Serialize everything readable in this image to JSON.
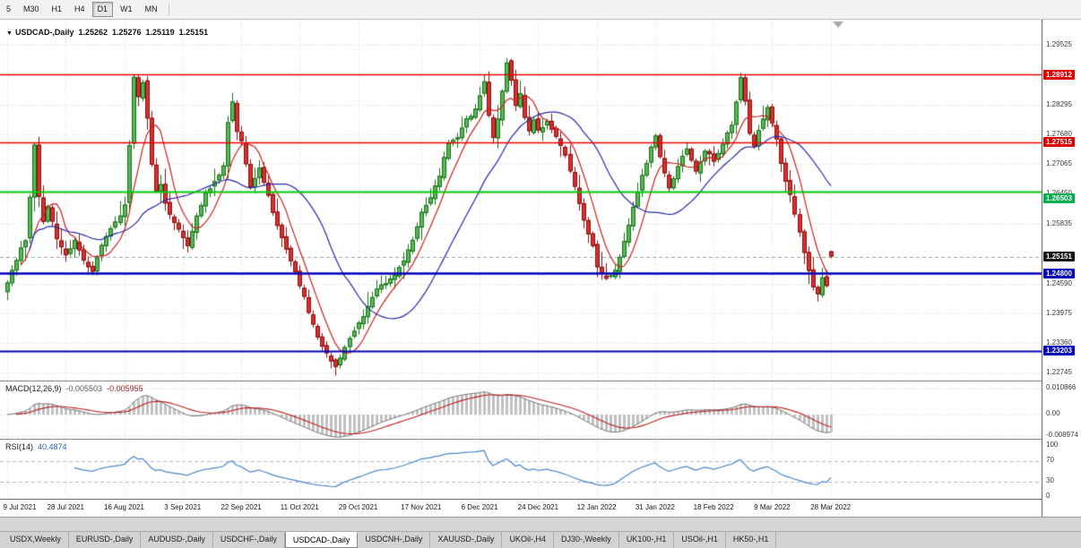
{
  "toolbar": {
    "buttons": [
      {
        "label": "5",
        "active": false
      },
      {
        "label": "M30",
        "active": false
      },
      {
        "label": "H1",
        "active": false
      },
      {
        "label": "H4",
        "active": false
      },
      {
        "label": "D1",
        "active": true
      },
      {
        "label": "W1",
        "active": false
      },
      {
        "label": "MN",
        "active": false
      }
    ]
  },
  "chart_header": {
    "marker": "▼",
    "symbol": "USDCAD-,Daily",
    "open": "1.25262",
    "high": "1.25276",
    "low": "1.25119",
    "close": "1.25151"
  },
  "price_axis": {
    "labels": [
      "1.29525",
      "1.28295",
      "1.27680",
      "1.27065",
      "1.26450",
      "1.25835",
      "1.24590",
      "1.23975",
      "1.23360",
      "1.22745"
    ],
    "tags": [
      {
        "text": "1.28912",
        "color": "#dd0000",
        "dy": 0
      },
      {
        "text": "1.27515",
        "color": "#dd0000",
        "dy": 0
      },
      {
        "text": "1.26503",
        "color": "#00b050",
        "dy": 8
      },
      {
        "text": "1.25151",
        "color": "#141414",
        "dy": 0
      },
      {
        "text": "1.24800",
        "color": "#0000bb",
        "dy": 0
      },
      {
        "text": "1.23203",
        "color": "#0000bb",
        "dy": 0
      }
    ]
  },
  "macd_panel": {
    "title": "MACD(12,26,9)",
    "value1": "-0.005503",
    "value2": "-0.005955",
    "axis": [
      {
        "text": "0.010866",
        "value": 0.010866
      },
      {
        "text": "0.00",
        "value": 0
      },
      {
        "text": "-0.008974",
        "value": -0.008974
      }
    ]
  },
  "rsi_panel": {
    "title": "RSI(14)",
    "value": "40.4874",
    "axis": [
      {
        "text": "100",
        "value": 100
      },
      {
        "text": "70",
        "value": 70
      },
      {
        "text": "30",
        "value": 30
      },
      {
        "text": "0",
        "value": 0
      }
    ]
  },
  "date_axis": [
    "9 Jul 2021",
    "28 Jul 2021",
    "16 Aug 2021",
    "3 Sep 2021",
    "22 Sep 2021",
    "11 Oct 2021",
    "29 Oct 2021",
    "17 Nov 2021",
    "6 Dec 2021",
    "24 Dec 2021",
    "12 Jan 2022",
    "31 Jan 2022",
    "18 Feb 2022",
    "9 Mar 2022",
    "28 Mar 2022"
  ],
  "tabs": [
    {
      "label": "USDX,Weekly",
      "active": false
    },
    {
      "label": "EURUSD-,Daily",
      "active": false
    },
    {
      "label": "AUDUSD-,Daily",
      "active": false
    },
    {
      "label": "USDCHF-,Daily",
      "active": false
    },
    {
      "label": "USDCAD-,Daily",
      "active": true
    },
    {
      "label": "USDCNH-,Daily",
      "active": false
    },
    {
      "label": "XAUUSD-,Daily",
      "active": false
    },
    {
      "label": "UKOil-,H4",
      "active": false
    },
    {
      "label": "DJ30-,Weekly",
      "active": false
    },
    {
      "label": "UK100-,H1",
      "active": false
    },
    {
      "label": "USOil-,H1",
      "active": false
    },
    {
      "label": "HK50-,H1",
      "active": false
    }
  ],
  "chart_data": {
    "type": "candlestick",
    "symbol": "USDCAD",
    "timeframe": "Daily",
    "last_candle": {
      "o": 1.25262,
      "h": 1.25276,
      "l": 1.25119,
      "c": 1.25151
    },
    "current_price": 1.25151,
    "candle_count": 184,
    "ylim": [
      1.2245,
      1.2997
    ],
    "price_grid": [
      1.29525,
      1.28295,
      1.2768,
      1.27065,
      1.2645,
      1.25835,
      1.2459,
      1.23975,
      1.2336,
      1.22745
    ],
    "date_label_indices": [
      0,
      13,
      26,
      39,
      52,
      65,
      78,
      92,
      105,
      118,
      131,
      144,
      157,
      170,
      183
    ],
    "hlines": [
      {
        "price": 1.28912,
        "color": "#ee0000",
        "width": 1.5
      },
      {
        "price": 1.27515,
        "color": "#ee0000",
        "width": 1.5
      },
      {
        "price": 1.26503,
        "color": "#00cc00",
        "width": 2
      },
      {
        "price": 1.248,
        "color": "#0000bb",
        "width": 2.5
      },
      {
        "price": 1.23203,
        "color": "#0000bb",
        "width": 2
      }
    ],
    "overlays": [
      {
        "name": "fast-ma",
        "type": "sma",
        "period": 7,
        "color": "#cc2020"
      },
      {
        "name": "slow-ma",
        "type": "sma",
        "period": 22,
        "color": "#2a2aa8"
      }
    ],
    "indicators": [
      {
        "name": "MACD",
        "params": [
          12,
          26,
          9
        ],
        "last": [
          -0.005503,
          -0.005955
        ],
        "yrange": [
          -0.008974,
          0.010866
        ]
      },
      {
        "name": "RSI",
        "params": [
          14
        ],
        "last": 40.4874,
        "levels": [
          70,
          30
        ],
        "yrange": [
          0,
          100
        ]
      }
    ],
    "close_anchors": [
      [
        0,
        1.2455
      ],
      [
        2,
        1.2505
      ],
      [
        4,
        1.255
      ],
      [
        5,
        1.264
      ],
      [
        6,
        1.275
      ],
      [
        7,
        1.264
      ],
      [
        8,
        1.2585
      ],
      [
        9,
        1.262
      ],
      [
        10,
        1.259
      ],
      [
        11,
        1.2555
      ],
      [
        13,
        1.252
      ],
      [
        15,
        1.255
      ],
      [
        17,
        1.2505
      ],
      [
        19,
        1.2475
      ],
      [
        21,
        1.253
      ],
      [
        23,
        1.257
      ],
      [
        25,
        1.2595
      ],
      [
        26,
        1.262
      ],
      [
        27,
        1.275
      ],
      [
        28,
        1.289
      ],
      [
        29,
        1.2845
      ],
      [
        30,
        1.287
      ],
      [
        31,
        1.2795
      ],
      [
        32,
        1.27
      ],
      [
        33,
        1.265
      ],
      [
        34,
        1.2665
      ],
      [
        35,
        1.2625
      ],
      [
        36,
        1.26
      ],
      [
        38,
        1.257
      ],
      [
        40,
        1.253
      ],
      [
        42,
        1.259
      ],
      [
        44,
        1.2645
      ],
      [
        46,
        1.2665
      ],
      [
        48,
        1.27
      ],
      [
        49,
        1.279
      ],
      [
        50,
        1.283
      ],
      [
        51,
        1.277
      ],
      [
        52,
        1.275
      ],
      [
        54,
        1.265
      ],
      [
        56,
        1.269
      ],
      [
        58,
        1.264
      ],
      [
        60,
        1.258
      ],
      [
        62,
        1.2535
      ],
      [
        65,
        1.245
      ],
      [
        66,
        1.243
      ],
      [
        68,
        1.238
      ],
      [
        70,
        1.233
      ],
      [
        72,
        1.23
      ],
      [
        73,
        1.229
      ],
      [
        75,
        1.2325
      ],
      [
        77,
        1.2355
      ],
      [
        79,
        1.239
      ],
      [
        82,
        1.2445
      ],
      [
        85,
        1.2465
      ],
      [
        88,
        1.2505
      ],
      [
        90,
        1.2545
      ],
      [
        92,
        1.261
      ],
      [
        94,
        1.264
      ],
      [
        96,
        1.268
      ],
      [
        98,
        1.275
      ],
      [
        100,
        1.276
      ],
      [
        102,
        1.28
      ],
      [
        104,
        1.282
      ],
      [
        106,
        1.287
      ],
      [
        107,
        1.28
      ],
      [
        108,
        1.276
      ],
      [
        109,
        1.28
      ],
      [
        110,
        1.286
      ],
      [
        111,
        1.292
      ],
      [
        112,
        1.288
      ],
      [
        113,
        1.283
      ],
      [
        114,
        1.285
      ],
      [
        115,
        1.28
      ],
      [
        116,
        1.277
      ],
      [
        117,
        1.28
      ],
      [
        118,
        1.278
      ],
      [
        120,
        1.28
      ],
      [
        122,
        1.276
      ],
      [
        124,
        1.273
      ],
      [
        126,
        1.266
      ],
      [
        128,
        1.259
      ],
      [
        130,
        1.254
      ],
      [
        131,
        1.25
      ],
      [
        133,
        1.247
      ],
      [
        135,
        1.249
      ],
      [
        137,
        1.255
      ],
      [
        139,
        1.262
      ],
      [
        141,
        1.269
      ],
      [
        143,
        1.275
      ],
      [
        144,
        1.277
      ],
      [
        145,
        1.272
      ],
      [
        147,
        1.266
      ],
      [
        149,
        1.27
      ],
      [
        151,
        1.274
      ],
      [
        153,
        1.27
      ],
      [
        155,
        1.273
      ],
      [
        157,
        1.271
      ],
      [
        159,
        1.275
      ],
      [
        161,
        1.279
      ],
      [
        163,
        1.2885
      ],
      [
        164,
        1.283
      ],
      [
        165,
        1.276
      ],
      [
        166,
        1.274
      ],
      [
        167,
        1.2775
      ],
      [
        168,
        1.2805
      ],
      [
        169,
        1.283
      ],
      [
        170,
        1.28
      ],
      [
        171,
        1.276
      ],
      [
        172,
        1.271
      ],
      [
        173,
        1.267
      ],
      [
        174,
        1.2645
      ],
      [
        175,
        1.2605
      ],
      [
        176,
        1.2565
      ],
      [
        177,
        1.2525
      ],
      [
        178,
        1.2485
      ],
      [
        179,
        1.2455
      ],
      [
        180,
        1.2435
      ],
      [
        181,
        1.247
      ],
      [
        182,
        1.2455
      ],
      [
        183,
        1.2515
      ]
    ],
    "colors": {
      "bull_fill": "#58b558",
      "bull_stroke": "#167016",
      "bear_fill": "#d63030",
      "bear_stroke": "#8c0e0e",
      "macd_hist": "#c0c0c0",
      "macd_outline": "#7a7a7a",
      "macd_signal": "#c02020",
      "rsi_line": "#4a86c8",
      "rsi_levels": "#aab4d8",
      "grid": "#d6d6d6",
      "bid_line": "#9aa0b0"
    }
  }
}
